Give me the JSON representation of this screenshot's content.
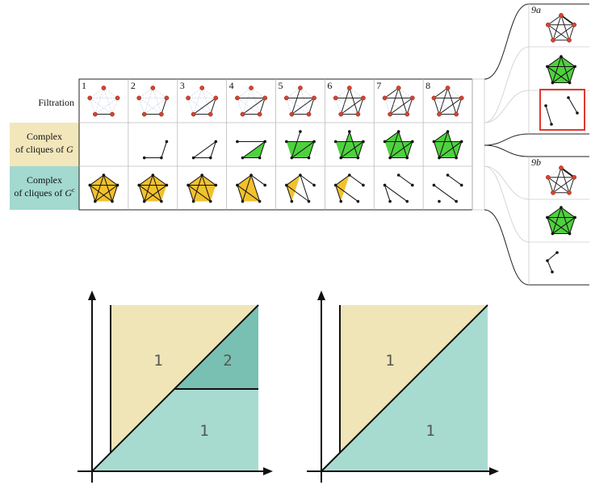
{
  "row_labels": {
    "filtration": "Filtration",
    "complex_g_line1": "Complex",
    "complex_g_line2": "of cliques of ",
    "complex_g_var": "G",
    "complex_gc_line1": "Complex",
    "complex_gc_line2": "of cliques of ",
    "complex_gc_var": "G",
    "complex_gc_sup": "c"
  },
  "columns": [
    "1",
    "2",
    "3",
    "4",
    "5",
    "6",
    "7",
    "8"
  ],
  "branches": {
    "a": "9a",
    "b": "9b"
  },
  "diagram_left": {
    "upper": "1",
    "right": "2",
    "lower": "1"
  },
  "diagram_right": {
    "upper": "1",
    "lower": "1"
  },
  "colors": {
    "yellow_band": "#f2e6bb",
    "teal_band": "#a3d9cf",
    "graph_edge_faint": "#c6d3ec",
    "vertex_red": "#d9432c",
    "green_face": "#4fd13f",
    "yellow_face": "#f2c12e",
    "beige_region": "#f0e5b7",
    "teal_region": "#a8dbd0",
    "dark_teal_region": "#79c0b2",
    "highlight": "#e03a2c"
  }
}
